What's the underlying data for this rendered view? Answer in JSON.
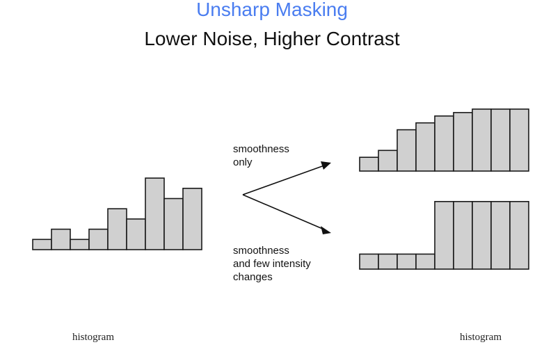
{
  "title": "Unsharp Masking",
  "subtitle": "Lower Noise, Higher Contrast",
  "colors": {
    "title": "#4a7df0",
    "bar_fill": "#d0d0d0",
    "bar_stroke": "#1a1a1a"
  },
  "labels": {
    "top_arrow": [
      "smoothness",
      "only"
    ],
    "bottom_arrow": [
      "smoothness",
      "and few intensity",
      "changes"
    ]
  },
  "captions": {
    "left": "histogram",
    "right": "histogram"
  },
  "histograms": {
    "input": [
      1,
      2,
      1,
      2,
      4,
      3,
      7,
      5,
      6
    ],
    "smoothness_only": [
      2,
      3,
      6,
      7,
      8,
      8.5,
      9,
      9,
      9
    ],
    "few_intensity_changes": [
      1,
      1,
      1,
      1,
      4.5,
      4.5,
      4.5,
      4.5,
      4.5
    ]
  }
}
